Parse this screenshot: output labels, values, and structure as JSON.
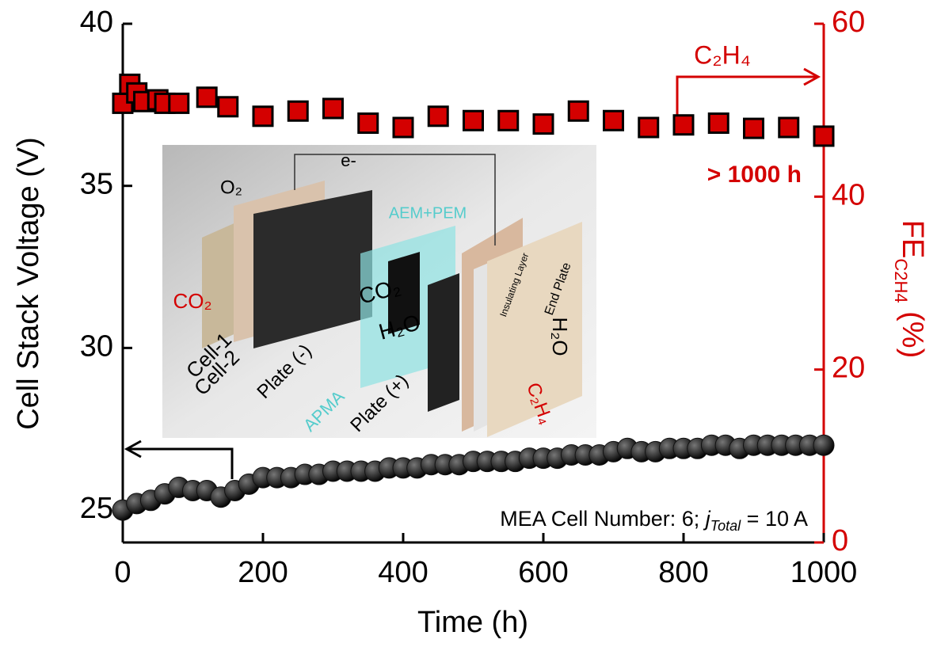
{
  "chart_data": {
    "type": "scatter",
    "x_label": "Time (h)",
    "y_label": "Cell Stack Voltage (V)",
    "y2_label": {
      "main": "FE",
      "sub": "C2H4",
      "unit": " (%)"
    },
    "xlim": [
      0,
      1000
    ],
    "xticks": [
      0,
      200,
      400,
      600,
      800,
      1000
    ],
    "ylim": [
      24,
      40
    ],
    "yticks": [
      25,
      30,
      35,
      40
    ],
    "y2lim": [
      0,
      60
    ],
    "y2ticks": [
      0,
      20,
      40,
      60
    ],
    "series": [
      {
        "color": "#d40000",
        "axis": "y2",
        "marker": "square",
        "x": [
          0,
          10,
          20,
          30,
          50,
          60,
          80,
          120,
          150,
          200,
          250,
          300,
          350,
          400,
          450,
          500,
          550,
          600,
          650,
          700,
          750,
          800,
          850,
          900,
          950,
          1000
        ],
        "values": [
          50.8,
          53,
          52,
          51,
          51.2,
          50.8,
          50.8,
          51.5,
          50.4,
          49.3,
          49.9,
          50.2,
          48.5,
          48,
          49.3,
          48.8,
          48.8,
          48.4,
          49.9,
          48.8,
          48,
          48.3,
          48.5,
          47.9,
          48,
          47
        ]
      },
      {
        "color": "#111111",
        "axis": "y",
        "marker": "circle",
        "x": [
          0,
          20,
          40,
          60,
          80,
          100,
          120,
          140,
          160,
          180,
          200,
          220,
          240,
          260,
          280,
          300,
          320,
          340,
          360,
          380,
          400,
          420,
          440,
          460,
          480,
          500,
          520,
          540,
          560,
          580,
          600,
          620,
          640,
          660,
          680,
          700,
          720,
          740,
          760,
          780,
          800,
          820,
          840,
          860,
          880,
          900,
          920,
          940,
          960,
          980,
          1000
        ],
        "values": [
          25.0,
          25.2,
          25.3,
          25.5,
          25.7,
          25.6,
          25.6,
          25.4,
          25.6,
          25.8,
          26.0,
          26.0,
          26.0,
          26.1,
          26.1,
          26.2,
          26.2,
          26.2,
          26.2,
          26.3,
          26.3,
          26.3,
          26.4,
          26.4,
          26.4,
          26.5,
          26.5,
          26.5,
          26.5,
          26.6,
          26.6,
          26.6,
          26.7,
          26.7,
          26.7,
          26.8,
          26.9,
          26.8,
          26.8,
          26.9,
          26.9,
          26.9,
          27.0,
          27.0,
          26.9,
          27.0,
          27.0,
          27.0,
          27.0,
          27.0,
          27.0
        ]
      }
    ],
    "annotations": {
      "product": "C₂H₄",
      "duration": "> 1000 h",
      "condition": {
        "prefix": "MEA Cell Number: 6; ",
        "j": "j",
        "sub": "Total",
        "suffix": " = 10 A"
      }
    },
    "inset": {
      "labels": [
        "e-",
        "O₂",
        "CO₂",
        "AEM+PEM",
        "CO₂",
        "H₂O",
        "Insulating Layer",
        "End Plate",
        "H₂O",
        "Cell-1",
        "Cell-2",
        "Plate (-)",
        "APMA",
        "Plate (+)",
        "C₂H₄"
      ]
    }
  }
}
